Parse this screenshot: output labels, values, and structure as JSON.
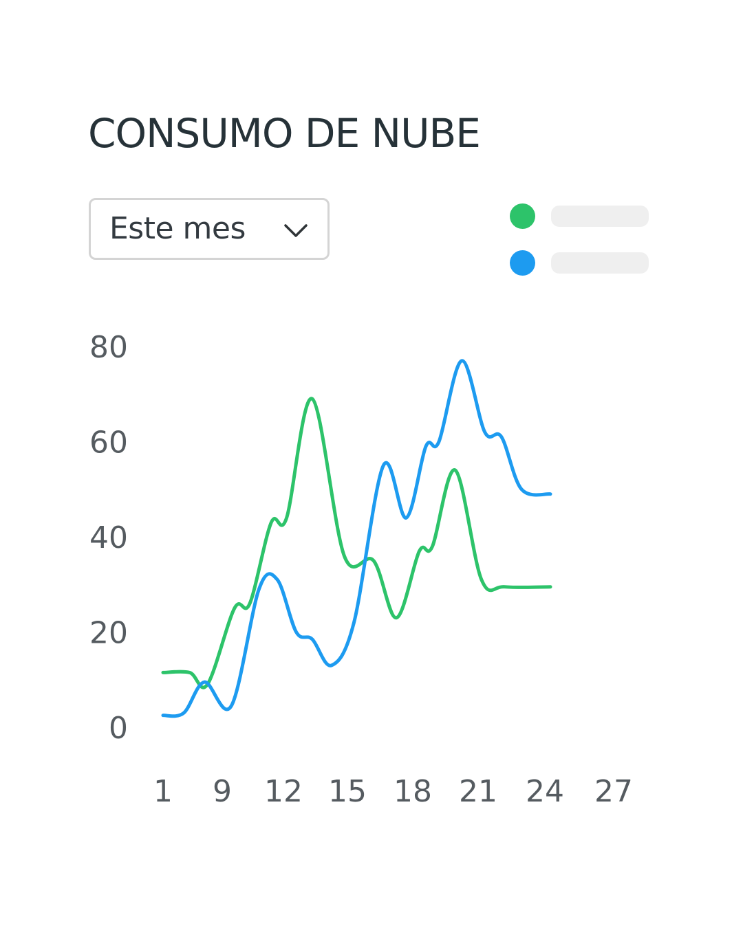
{
  "title": "CONSUMO DE NUBE",
  "period_select": {
    "value": "Este mes"
  },
  "icons": {
    "select_chevron": "chevron-down-icon"
  },
  "colors": {
    "title": "#263238",
    "series_green": "#2dc36a",
    "series_blue": "#1d9bf0",
    "legend_placeholder": "#efefef",
    "tick_label": "#555b60"
  },
  "chart_data": {
    "type": "line",
    "title": "CONSUMO DE NUBE",
    "xlabel": "",
    "ylabel": "",
    "x_ticks": [
      "1",
      "9",
      "12",
      "15",
      "18",
      "21",
      "24",
      "27"
    ],
    "y_ticks": [
      0,
      20,
      40,
      60,
      80
    ],
    "ylim": [
      0,
      80
    ],
    "grid": false,
    "legend": "top-right",
    "series": [
      {
        "color": "#2dc36a",
        "points": [
          [
            0,
            11.5
          ],
          [
            0.45,
            11.5
          ],
          [
            0.75,
            9
          ],
          [
            1.2,
            25
          ],
          [
            1.45,
            26
          ],
          [
            1.8,
            43
          ],
          [
            2.05,
            44
          ],
          [
            2.45,
            69
          ],
          [
            2.95,
            36
          ],
          [
            3.4,
            35
          ],
          [
            3.75,
            23
          ],
          [
            4.1,
            37
          ],
          [
            4.3,
            38
          ],
          [
            4.65,
            54
          ],
          [
            5.05,
            31
          ],
          [
            5.4,
            29.5
          ],
          [
            6.08,
            29.5
          ]
        ]
      },
      {
        "color": "#1d9bf0",
        "points": [
          [
            0,
            2.5
          ],
          [
            0.35,
            3
          ],
          [
            0.7,
            9.5
          ],
          [
            1.15,
            4.5
          ],
          [
            1.6,
            29
          ],
          [
            1.9,
            31
          ],
          [
            2.2,
            20
          ],
          [
            2.45,
            18.5
          ],
          [
            2.75,
            13
          ],
          [
            3.1,
            22
          ],
          [
            3.55,
            55
          ],
          [
            3.9,
            44
          ],
          [
            4.2,
            59
          ],
          [
            4.4,
            60
          ],
          [
            4.75,
            77
          ],
          [
            5.1,
            62
          ],
          [
            5.35,
            61
          ],
          [
            5.65,
            50
          ],
          [
            6.08,
            49
          ]
        ]
      }
    ]
  }
}
